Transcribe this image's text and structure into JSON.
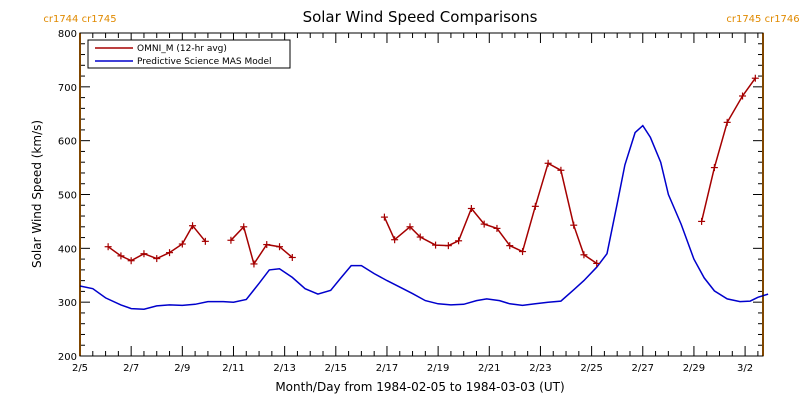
{
  "chart_data": {
    "type": "line",
    "title": "Solar Wind Speed Comparisons",
    "xlabel": "Month/Day from 1984-02-05 to 1984-03-03 (UT)",
    "ylabel": "Solar Wind Speed (km/s)",
    "xlim": [
      "1984-02-05",
      "1984-03-03"
    ],
    "ylim": [
      200,
      800
    ],
    "y_ticks": [
      "200",
      "300",
      "400",
      "500",
      "600",
      "700",
      "800"
    ],
    "x_ticks": [
      {
        "label": "2/5",
        "day": 0
      },
      {
        "label": "2/7",
        "day": 2
      },
      {
        "label": "2/9",
        "day": 4
      },
      {
        "label": "2/11",
        "day": 6
      },
      {
        "label": "2/13",
        "day": 8
      },
      {
        "label": "2/15",
        "day": 10
      },
      {
        "label": "2/17",
        "day": 12
      },
      {
        "label": "2/19",
        "day": 14
      },
      {
        "label": "2/21",
        "day": 16
      },
      {
        "label": "2/23",
        "day": 18
      },
      {
        "label": "2/25",
        "day": 20
      },
      {
        "label": "2/27",
        "day": 22
      },
      {
        "label": "2/29",
        "day": 24
      },
      {
        "label": "3/2",
        "day": 26
      }
    ],
    "rotation_labels": [
      {
        "text": "cr1744 cr1745",
        "day": 0
      },
      {
        "text": "cr1745 cr1746",
        "day": 26.7
      }
    ],
    "rotation_boundaries": [
      0,
      26.7
    ],
    "legend_position": "top-left",
    "colors": {
      "omni": "#a50000",
      "model": "#0000cc",
      "boundary": "#ff8c00"
    },
    "series": [
      {
        "name": "OMNI_M (12-hr avg)",
        "style": "line-plus",
        "segments": [
          [
            [
              1.1,
              403
            ],
            [
              1.6,
              386
            ],
            [
              2.0,
              377
            ],
            [
              2.5,
              390
            ],
            [
              3.0,
              381
            ],
            [
              3.5,
              392
            ],
            [
              4.0,
              408
            ],
            [
              4.4,
              442
            ],
            [
              4.9,
              413
            ]
          ],
          [
            [
              5.9,
              415
            ],
            [
              6.4,
              440
            ],
            [
              6.8,
              371
            ],
            [
              7.3,
              407
            ],
            [
              7.8,
              403
            ],
            [
              8.3,
              383
            ]
          ],
          [
            [
              11.9,
              458
            ],
            [
              12.3,
              416
            ],
            [
              12.9,
              440
            ],
            [
              13.3,
              421
            ],
            [
              13.9,
              406
            ],
            [
              14.4,
              405
            ],
            [
              14.8,
              414
            ],
            [
              15.3,
              474
            ],
            [
              15.8,
              445
            ],
            [
              16.3,
              437
            ],
            [
              16.8,
              405
            ],
            [
              17.3,
              394
            ],
            [
              17.8,
              478
            ],
            [
              18.3,
              558
            ],
            [
              18.8,
              545
            ],
            [
              19.3,
              443
            ],
            [
              19.7,
              388
            ],
            [
              20.2,
              372
            ]
          ],
          [
            [
              24.3,
              450
            ],
            [
              24.8,
              550
            ],
            [
              25.3,
              634
            ],
            [
              25.9,
              683
            ],
            [
              26.4,
              716
            ]
          ]
        ]
      },
      {
        "name": "Predictive Science MAS Model",
        "style": "line",
        "points": [
          [
            0,
            330
          ],
          [
            0.5,
            325
          ],
          [
            1,
            308
          ],
          [
            1.6,
            295
          ],
          [
            2,
            288
          ],
          [
            2.5,
            287
          ],
          [
            3,
            293
          ],
          [
            3.5,
            295
          ],
          [
            4,
            294
          ],
          [
            4.5,
            296
          ],
          [
            5,
            301
          ],
          [
            5.6,
            301
          ],
          [
            6,
            300
          ],
          [
            6.5,
            305
          ],
          [
            7,
            335
          ],
          [
            7.4,
            360
          ],
          [
            7.8,
            362
          ],
          [
            8.3,
            346
          ],
          [
            8.8,
            325
          ],
          [
            9.3,
            315
          ],
          [
            9.8,
            322
          ],
          [
            10.2,
            345
          ],
          [
            10.6,
            368
          ],
          [
            11,
            368
          ],
          [
            11.5,
            353
          ],
          [
            12,
            340
          ],
          [
            12.5,
            328
          ],
          [
            13,
            316
          ],
          [
            13.5,
            303
          ],
          [
            14,
            297
          ],
          [
            14.5,
            295
          ],
          [
            15,
            296
          ],
          [
            15.5,
            303
          ],
          [
            15.9,
            306
          ],
          [
            16.4,
            303
          ],
          [
            16.8,
            297
          ],
          [
            17.3,
            294
          ],
          [
            17.8,
            297
          ],
          [
            18.3,
            300
          ],
          [
            18.8,
            302
          ],
          [
            19.3,
            323
          ],
          [
            19.7,
            340
          ],
          [
            20.2,
            365
          ],
          [
            20.6,
            390
          ],
          [
            21,
            483
          ],
          [
            21.3,
            555
          ],
          [
            21.7,
            615
          ],
          [
            22,
            628
          ],
          [
            22.3,
            606
          ],
          [
            22.7,
            560
          ],
          [
            23,
            500
          ],
          [
            23.5,
            445
          ],
          [
            24,
            380
          ],
          [
            24.4,
            345
          ],
          [
            24.8,
            321
          ],
          [
            25.3,
            306
          ],
          [
            25.8,
            301
          ],
          [
            26.2,
            302
          ],
          [
            26.5,
            309
          ],
          [
            26.9,
            315
          ]
        ]
      }
    ]
  }
}
